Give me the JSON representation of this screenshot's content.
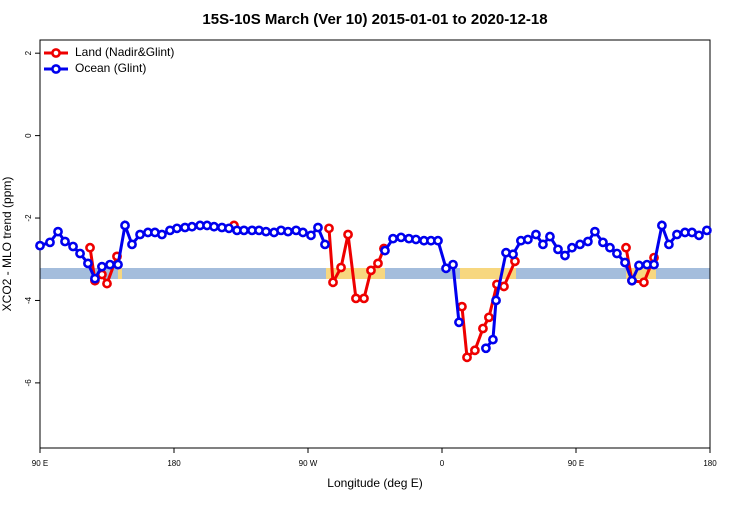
{
  "chart_data": {
    "type": "line",
    "title": "15S-10S March (Ver 10)   2015-01-01 to 2020-12-18",
    "x_label": "Longitude (deg E)",
    "y_label": "XCO2 - MLO trend (ppm)",
    "xlim": [
      90,
      540
    ],
    "xticks": [
      {
        "value": 90,
        "label": "90 E"
      },
      180,
      {
        "value": 270,
        "label": "90 W"
      },
      {
        "value": 360,
        "label": "0"
      },
      {
        "value": 450,
        "label": "90 E"
      },
      {
        "value": 540,
        "label": "180"
      }
    ],
    "ylim": [
      -7.58,
      2.32
    ],
    "yticks": [
      2,
      0,
      -2,
      -4,
      -6
    ],
    "legend": "top-left",
    "series": [
      {
        "name": "Land (Nadir&Glint)",
        "color": "#ee0000",
        "x": [
          123.6,
          126.9,
          131.6,
          135.0,
          141.7,
          null,
          220.3,
          null,
          284.1,
          286.8,
          292.2,
          296.9,
          302.2,
          307.6,
          312.3,
          317.0,
          321.0,
          null,
          373.4,
          376.8,
          382.1,
          387.5,
          391.5,
          396.9,
          401.6,
          409.0,
          null,
          483.6,
          487.6,
          495.6,
          502.4
        ],
        "values": [
          -2.72,
          -3.52,
          -3.37,
          -3.59,
          -2.93,
          null,
          -2.18,
          null,
          -2.25,
          -3.56,
          -3.2,
          -2.4,
          -3.95,
          -3.95,
          -3.27,
          -3.1,
          -2.74,
          null,
          -4.15,
          -5.38,
          -5.21,
          -4.68,
          -4.41,
          -3.61,
          -3.66,
          -3.05,
          null,
          -2.72,
          -3.52,
          -3.56,
          -2.96
        ]
      },
      {
        "name": "Ocean (Glint)",
        "color": "#0000ee",
        "x": [
          90,
          96.7,
          102.1,
          106.8,
          112.2,
          116.9,
          122.2,
          126.9,
          131.6,
          137.0,
          142.4,
          147.1,
          151.8,
          157.2,
          162.5,
          167.2,
          171.9,
          177.3,
          182.0,
          187.4,
          192.1,
          197.5,
          202.2,
          206.9,
          212.2,
          216.9,
          222.3,
          227.0,
          232.4,
          237.1,
          241.8,
          247.2,
          251.9,
          256.6,
          262.0,
          266.6,
          272.0,
          276.7,
          281.4,
          null,
          321.7,
          327.1,
          332.5,
          337.8,
          342.5,
          347.9,
          352.6,
          357.3,
          362.7,
          367.4,
          371.4,
          null,
          389.5,
          394.2,
          396.3,
          403.0,
          407.7,
          413.0,
          417.7,
          423.1,
          427.8,
          432.5,
          437.9,
          442.6,
          447.3,
          452.7,
          458.0,
          462.7,
          468.1,
          472.8,
          477.5,
          482.9,
          487.6,
          492.3,
          497.7,
          502.4,
          507.7,
          512.4,
          517.8,
          523.2,
          527.9,
          532.6,
          537.9
        ],
        "values": [
          -2.67,
          -2.59,
          -2.33,
          -2.57,
          -2.69,
          -2.86,
          -3.1,
          -3.47,
          -3.18,
          -3.13,
          -3.13,
          -2.18,
          -2.64,
          -2.4,
          -2.35,
          -2.35,
          -2.4,
          -2.3,
          -2.25,
          -2.23,
          -2.21,
          -2.18,
          -2.18,
          -2.21,
          -2.23,
          -2.25,
          -2.3,
          -2.3,
          -2.3,
          -2.3,
          -2.33,
          -2.35,
          -2.3,
          -2.33,
          -2.3,
          -2.35,
          -2.42,
          -2.23,
          -2.64,
          null,
          -2.79,
          -2.5,
          -2.47,
          -2.5,
          -2.52,
          -2.55,
          -2.55,
          -2.55,
          -3.22,
          -3.13,
          -4.53,
          null,
          -5.16,
          -4.95,
          -4.0,
          -2.84,
          -2.88,
          -2.55,
          -2.52,
          -2.4,
          -2.64,
          -2.45,
          -2.76,
          -2.91,
          -2.72,
          -2.64,
          -2.57,
          -2.33,
          -2.59,
          -2.72,
          -2.86,
          -3.08,
          -3.52,
          -3.15,
          -3.13,
          -3.13,
          -2.18,
          -2.64,
          -2.4,
          -2.35,
          -2.35,
          -2.42,
          -2.3
        ]
      }
    ]
  }
}
